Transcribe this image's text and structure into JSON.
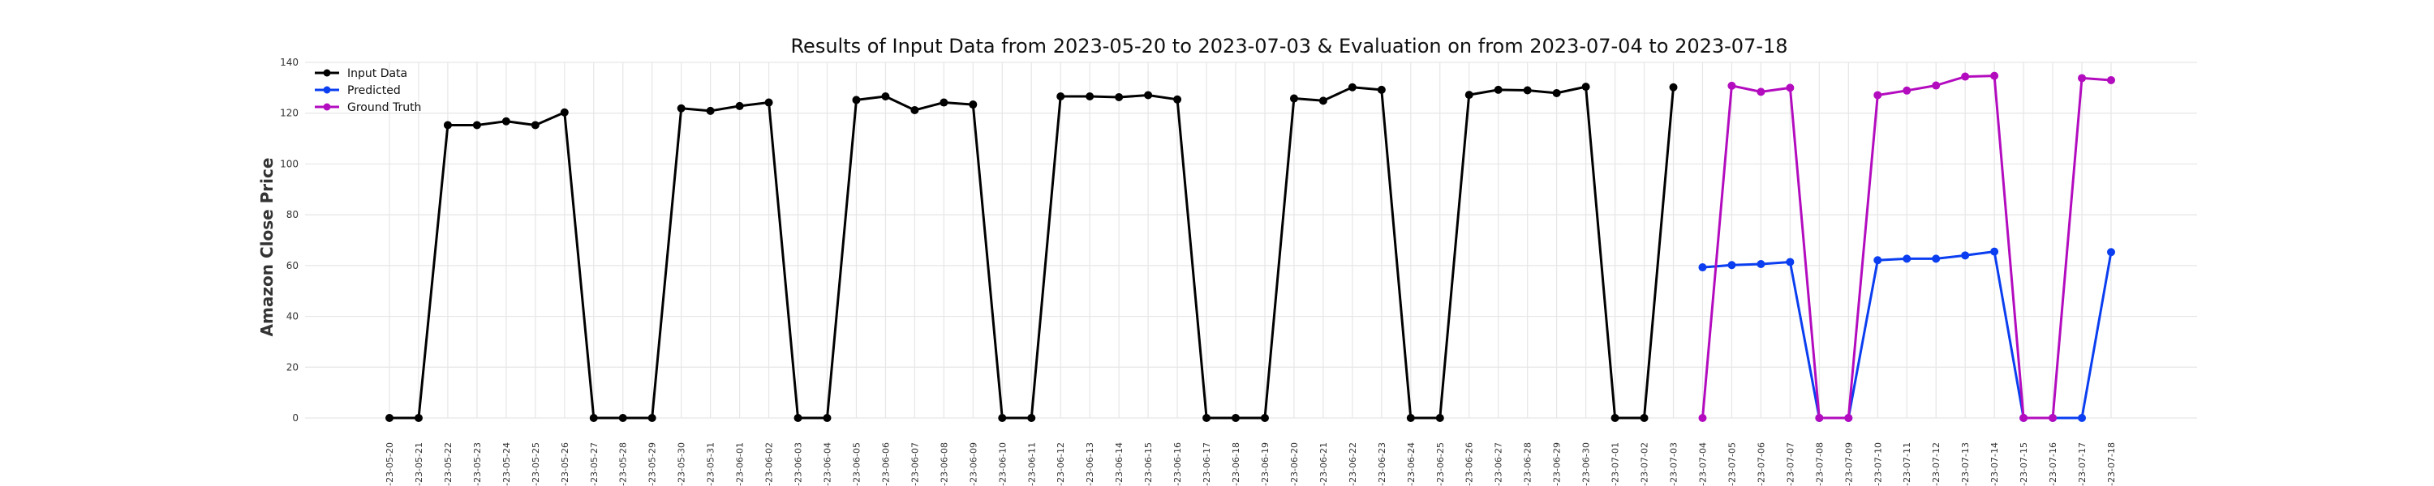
{
  "chart_data": {
    "type": "line",
    "title": "Results of Input Data from 2023-05-20 to 2023-07-03 & Evaluation on from 2023-07-04 to 2023-07-18",
    "xlabel": "",
    "ylabel": "Amazon Close Price",
    "ylim": [
      0,
      140
    ],
    "yticks": [
      0,
      20,
      40,
      60,
      80,
      100,
      120,
      140
    ],
    "grid": true,
    "legend_position": "top-left",
    "x": [
      "2023-05-20",
      "2023-05-21",
      "2023-05-22",
      "2023-05-23",
      "2023-05-24",
      "2023-05-25",
      "2023-05-26",
      "2023-05-27",
      "2023-05-28",
      "2023-05-29",
      "2023-05-30",
      "2023-05-31",
      "2023-06-01",
      "2023-06-02",
      "2023-06-03",
      "2023-06-04",
      "2023-06-05",
      "2023-06-06",
      "2023-06-07",
      "2023-06-08",
      "2023-06-09",
      "2023-06-10",
      "2023-06-11",
      "2023-06-12",
      "2023-06-13",
      "2023-06-14",
      "2023-06-15",
      "2023-06-16",
      "2023-06-17",
      "2023-06-18",
      "2023-06-19",
      "2023-06-20",
      "2023-06-21",
      "2023-06-22",
      "2023-06-23",
      "2023-06-24",
      "2023-06-25",
      "2023-06-26",
      "2023-06-27",
      "2023-06-28",
      "2023-06-29",
      "2023-06-30",
      "2023-07-01",
      "2023-07-02",
      "2023-07-03",
      "2023-07-04",
      "2023-07-05",
      "2023-07-06",
      "2023-07-07",
      "2023-07-08",
      "2023-07-09",
      "2023-07-10",
      "2023-07-11",
      "2023-07-12",
      "2023-07-13",
      "2023-07-14",
      "2023-07-15",
      "2023-07-16",
      "2023-07-17",
      "2023-07-18"
    ],
    "x_tick_labels": [
      "-23-05-20",
      "-23-05-21",
      "-23-05-22",
      "-23-05-23",
      "-23-05-24",
      "-23-05-25",
      "-23-05-26",
      "-23-05-27",
      "-23-05-28",
      "-23-05-29",
      "-23-05-30",
      "-23-05-31",
      "-23-06-01",
      "-23-06-02",
      "-23-06-03",
      "-23-06-04",
      "-23-06-05",
      "-23-06-06",
      "-23-06-07",
      "-23-06-08",
      "-23-06-09",
      "-23-06-10",
      "-23-06-11",
      "-23-06-12",
      "-23-06-13",
      "-23-06-14",
      "-23-06-15",
      "-23-06-16",
      "-23-06-17",
      "-23-06-18",
      "-23-06-19",
      "-23-06-20",
      "-23-06-21",
      "-23-06-22",
      "-23-06-23",
      "-23-06-24",
      "-23-06-25",
      "-23-06-26",
      "-23-06-27",
      "-23-06-28",
      "-23-06-29",
      "-23-06-30",
      "-23-07-01",
      "-23-07-02",
      "-23-07-03",
      "-23-07-04",
      "-23-07-05",
      "-23-07-06",
      "-23-07-07",
      "-23-07-08",
      "-23-07-09",
      "-23-07-10",
      "-23-07-11",
      "-23-07-12",
      "-23-07-13",
      "-23-07-14",
      "-23-07-15",
      "-23-07-16",
      "-23-07-17",
      "-23-07-18"
    ],
    "series": [
      {
        "name": "Input Data",
        "color": "#000000",
        "x": [
          "2023-05-20",
          "2023-05-21",
          "2023-05-22",
          "2023-05-23",
          "2023-05-24",
          "2023-05-25",
          "2023-05-26",
          "2023-05-27",
          "2023-05-28",
          "2023-05-29",
          "2023-05-30",
          "2023-05-31",
          "2023-06-01",
          "2023-06-02",
          "2023-06-03",
          "2023-06-04",
          "2023-06-05",
          "2023-06-06",
          "2023-06-07",
          "2023-06-08",
          "2023-06-09",
          "2023-06-10",
          "2023-06-11",
          "2023-06-12",
          "2023-06-13",
          "2023-06-14",
          "2023-06-15",
          "2023-06-16",
          "2023-06-17",
          "2023-06-18",
          "2023-06-19",
          "2023-06-20",
          "2023-06-21",
          "2023-06-22",
          "2023-06-23",
          "2023-06-24",
          "2023-06-25",
          "2023-06-26",
          "2023-06-27",
          "2023-06-28",
          "2023-06-29",
          "2023-06-30",
          "2023-07-01",
          "2023-07-02",
          "2023-07-03"
        ],
        "values": [
          0,
          0,
          115.3,
          115.3,
          116.8,
          115.3,
          120.3,
          0,
          0,
          0,
          121.9,
          120.9,
          122.8,
          124.2,
          0,
          0,
          125.2,
          126.6,
          121.2,
          124.2,
          123.4,
          0,
          0,
          126.6,
          126.6,
          126.3,
          127.1,
          125.4,
          0,
          0,
          0,
          125.8,
          124.9,
          130.2,
          129.2,
          0,
          0,
          127.2,
          129.2,
          129.0,
          127.9,
          130.4,
          0,
          0,
          130.2
        ]
      },
      {
        "name": "Predicted",
        "color": "#0a3ef0",
        "x": [
          "2023-07-04",
          "2023-07-05",
          "2023-07-06",
          "2023-07-07",
          "2023-07-08",
          "2023-07-09",
          "2023-07-10",
          "2023-07-11",
          "2023-07-12",
          "2023-07-13",
          "2023-07-14",
          "2023-07-15",
          "2023-07-16",
          "2023-07-17",
          "2023-07-18"
        ],
        "values": [
          59.3,
          60.2,
          60.6,
          61.4,
          0,
          0,
          62.1,
          62.7,
          62.7,
          64.0,
          65.5,
          0,
          0,
          0,
          65.3
        ]
      },
      {
        "name": "Ground Truth",
        "color": "#b30cbf",
        "x": [
          "2023-07-04",
          "2023-07-05",
          "2023-07-06",
          "2023-07-07",
          "2023-07-08",
          "2023-07-09",
          "2023-07-10",
          "2023-07-11",
          "2023-07-12",
          "2023-07-13",
          "2023-07-14",
          "2023-07-15",
          "2023-07-16",
          "2023-07-17",
          "2023-07-18"
        ],
        "values": [
          0,
          130.8,
          128.4,
          130.0,
          0,
          0,
          127.1,
          128.9,
          130.9,
          134.4,
          134.7,
          0,
          0,
          133.8,
          133.0
        ]
      }
    ]
  }
}
